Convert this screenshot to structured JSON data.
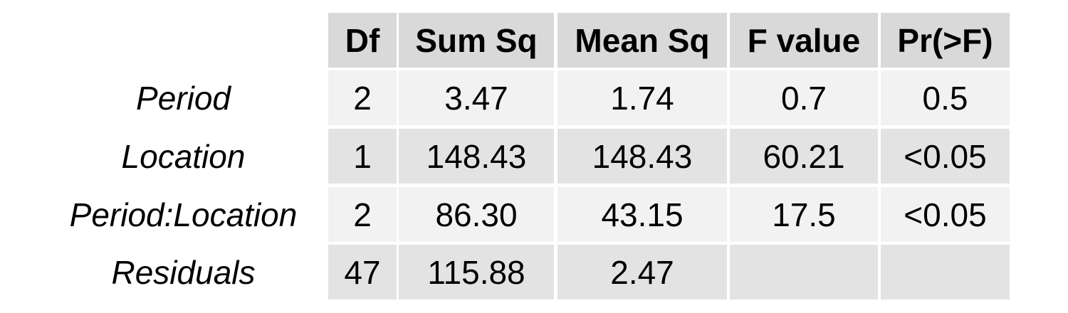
{
  "chart_data": {
    "type": "table",
    "columns": [
      "Df",
      "Sum Sq",
      "Mean Sq",
      "F value",
      "Pr(>F)"
    ],
    "rows": [
      {
        "label": "Period",
        "cells": [
          "2",
          "3.47",
          "1.74",
          "0.7",
          "0.5"
        ]
      },
      {
        "label": "Location",
        "cells": [
          "1",
          "148.43",
          "148.43",
          "60.21",
          "<0.05"
        ]
      },
      {
        "label": "Period:Location",
        "cells": [
          "2",
          "86.30",
          "43.15",
          "17.5",
          "<0.05"
        ]
      },
      {
        "label": "Residuals",
        "cells": [
          "47",
          "115.88",
          "2.47",
          "",
          ""
        ]
      }
    ]
  },
  "colors": {
    "header_bg": "#d9d9d9",
    "row_odd_bg": "#f2f2f2",
    "row_even_bg": "#e3e3e3"
  }
}
